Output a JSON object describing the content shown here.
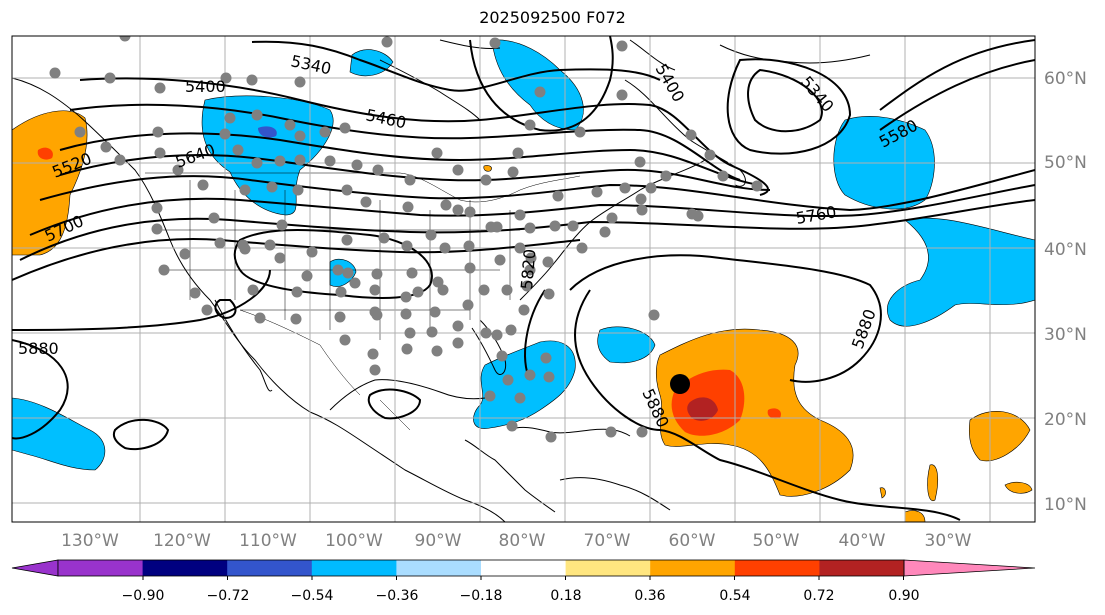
{
  "title": "2025092500 F072",
  "map": {
    "lon_labels": [
      "130°W",
      "120°W",
      "110°W",
      "100°W",
      "90°W",
      "80°W",
      "70°W",
      "60°W",
      "50°W",
      "40°W",
      "30°W"
    ],
    "lat_labels": [
      "60°N",
      "50°N",
      "40°N",
      "30°N",
      "20°N",
      "10°N"
    ],
    "contour_labels": [
      "5340",
      "5400",
      "5460",
      "5520",
      "5640",
      "5700",
      "5760",
      "5580",
      "5340",
      "5400",
      "5880",
      "5880",
      "5880",
      "5820"
    ],
    "storm_marker": "tropical-cyclone-center"
  },
  "colorbar": {
    "ticks": [
      "−0.90",
      "−0.72",
      "−0.54",
      "−0.36",
      "−0.18",
      "0.18",
      "0.36",
      "0.54",
      "0.72",
      "0.90"
    ],
    "colors": [
      "#9933cc",
      "#000080",
      "#3355cc",
      "#00bbff",
      "#aaddff",
      "#ffffff",
      "#ffe680",
      "#ffa500",
      "#ff4000",
      "#b22222",
      "#ff88bb"
    ]
  },
  "colors": {
    "neg_fill": "#00bfff",
    "neg_dark": "#3a55cc",
    "pos_fill": "#ffa500",
    "pos_mid": "#ff4000",
    "pos_dark": "#b22222",
    "station": "#808080"
  }
}
